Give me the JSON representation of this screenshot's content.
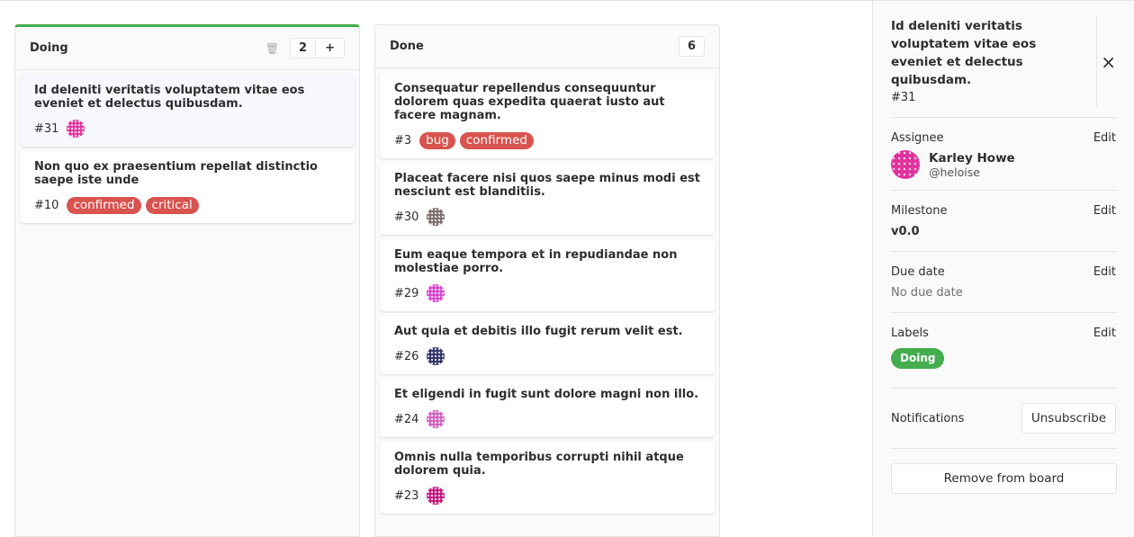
{
  "lists": [
    {
      "title": "Doing",
      "count": "2",
      "cards": [
        {
          "title": "Id deleniti veritatis voluptatem vitae eos eveniet et delectus quibusdam.",
          "number": "#31",
          "labels": [],
          "avatar": "#e0319c"
        },
        {
          "title": "Non quo ex praesentium repellat distinctio saepe iste unde",
          "number": "#10",
          "labels": [
            "confirmed",
            "critical"
          ],
          "avatar": null
        }
      ]
    },
    {
      "title": "Done",
      "count": "6",
      "cards": [
        {
          "title": "Consequatur repellendus consequuntur dolorem quas expedita quaerat iusto aut facere magnam.",
          "number": "#3",
          "labels": [
            "bug",
            "confirmed"
          ],
          "avatar": null
        },
        {
          "title": "Placeat facere nisi quos saepe minus modi est nesciunt est blanditiis.",
          "number": "#30",
          "labels": [],
          "avatar": "#7a6a6a"
        },
        {
          "title": "Eum eaque tempora et in repudiandae non molestiae porro.",
          "number": "#29",
          "labels": [],
          "avatar": "#d83fd0"
        },
        {
          "title": "Aut quia et debitis illo fugit rerum velit est.",
          "number": "#26",
          "labels": [],
          "avatar": "#2c2c66"
        },
        {
          "title": "Et eligendi in fugit sunt dolore magni non illo.",
          "number": "#24",
          "labels": [],
          "avatar": "#d05cc0"
        },
        {
          "title": "Omnis nulla temporibus corrupti nihil atque dolorem quia.",
          "number": "#23",
          "labels": [],
          "avatar": "#c0107a"
        }
      ]
    }
  ],
  "label_color": "#d9534f",
  "sidebar": {
    "title": "Id deleniti veritatis voluptatem vitae eos eveniet et delectus quibusdam.",
    "number": "#31",
    "edit": "Edit",
    "assignee": {
      "heading": "Assignee",
      "name": "Karley Howe",
      "username": "@heloise"
    },
    "milestone": {
      "heading": "Milestone",
      "value": "v0.0"
    },
    "due_date": {
      "heading": "Due date",
      "value": "No due date"
    },
    "labels": {
      "heading": "Labels",
      "items": [
        "Doing"
      ],
      "color": "#44ad4e"
    },
    "notifications": {
      "heading": "Notifications",
      "button": "Unsubscribe"
    },
    "remove_button": "Remove from board"
  }
}
